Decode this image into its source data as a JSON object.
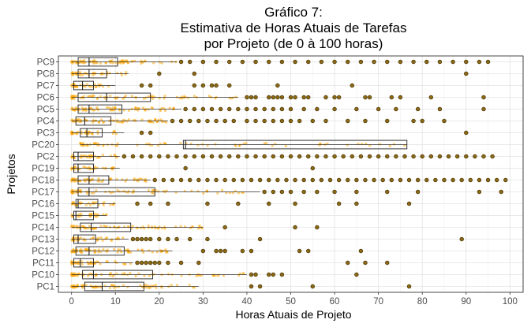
{
  "chart_data": {
    "type": "boxplot",
    "title_lines": [
      "Gráfico 7:",
      "Estimativa de Horas Atuais de Tarefas",
      "por Projeto (de 0 à 100 horas)"
    ],
    "xlabel": "Horas Atuais de Projeto",
    "ylabel": "Projetos",
    "xlim": [
      -3,
      103
    ],
    "x_ticks": [
      0,
      10,
      20,
      30,
      40,
      50,
      60,
      70,
      80,
      90,
      100
    ],
    "grid": true,
    "point_color": "#FFA500",
    "outlier_color": "#8B6914",
    "categories": [
      "PC9",
      "PC8",
      "PC7",
      "PC6",
      "PC5",
      "PC4",
      "PC3",
      "PC20",
      "PC2",
      "PC19",
      "PC18",
      "PC17",
      "PC16",
      "PC15",
      "PC14",
      "PC13",
      "PC12",
      "PC11",
      "PC10",
      "PC1"
    ],
    "boxes": [
      {
        "name": "PC9",
        "whisker_low": 0,
        "q1": 1.5,
        "median": 4,
        "q3": 10.5,
        "whisker_high": 24,
        "outliers": [
          25,
          27,
          30,
          33,
          36,
          39,
          42,
          45,
          48,
          51,
          54,
          57,
          60,
          63,
          66,
          69,
          72,
          75,
          78,
          81,
          84,
          87,
          90,
          93,
          95
        ]
      },
      {
        "name": "PC8",
        "whisker_low": 0,
        "q1": 1.5,
        "median": 4,
        "q3": 8,
        "whisker_high": 13,
        "outliers": [
          20,
          28,
          90
        ]
      },
      {
        "name": "PC7",
        "whisker_low": 0,
        "q1": 0.5,
        "median": 2.5,
        "q3": 5,
        "whisker_high": 10,
        "outliers": [
          16,
          18,
          28,
          30,
          32,
          33,
          36,
          47,
          64
        ]
      },
      {
        "name": "PC6",
        "whisker_low": 0,
        "q1": 1.5,
        "median": 8,
        "q3": 18,
        "whisker_high": 38,
        "outliers": [
          40,
          41,
          42,
          45,
          46,
          47,
          48,
          50,
          51,
          53,
          54,
          58,
          60,
          61,
          67,
          68,
          73,
          75,
          82,
          94
        ]
      },
      {
        "name": "PC5",
        "whisker_low": 0,
        "q1": 1.5,
        "median": 4,
        "q3": 11.5,
        "whisker_high": 25,
        "outliers": [
          26,
          28,
          30,
          32,
          34,
          36,
          38,
          40,
          42,
          44,
          46,
          48,
          50,
          53,
          56,
          60,
          65,
          70,
          74,
          79,
          84,
          94
        ]
      },
      {
        "name": "PC4",
        "whisker_low": 0,
        "q1": 1,
        "median": 3,
        "q3": 9,
        "whisker_high": 22,
        "outliers": [
          23,
          25,
          27,
          29,
          31,
          33,
          35,
          37,
          40,
          42,
          44,
          46,
          48,
          50,
          52,
          55,
          58,
          63,
          67,
          72,
          78,
          80,
          85
        ]
      },
      {
        "name": "PC3",
        "whisker_low": 0,
        "q1": 2,
        "median": 3.5,
        "q3": 7,
        "whisker_high": 12,
        "outliers": [
          16,
          18,
          90
        ]
      },
      {
        "name": "PC20",
        "whisker_low": 2,
        "q1": 25.5,
        "median": 26,
        "q3": 76.5,
        "whisker_high": 76.5,
        "outliers": []
      },
      {
        "name": "PC2",
        "whisker_low": 0,
        "q1": 0.5,
        "median": 1.5,
        "q3": 5,
        "whisker_high": 11,
        "outliers": [
          12,
          14,
          16,
          18,
          20,
          22,
          24,
          26,
          28,
          30,
          32,
          34,
          36,
          38,
          40,
          42,
          44,
          46,
          48,
          50,
          52,
          54,
          56,
          58,
          60,
          62,
          64,
          66,
          68,
          70,
          72,
          74,
          76,
          78,
          80,
          82,
          84,
          86,
          88,
          90,
          92,
          94,
          96
        ]
      },
      {
        "name": "PC19",
        "whisker_low": 0,
        "q1": 0.5,
        "median": 1.5,
        "q3": 5,
        "whisker_high": 11,
        "outliers": [
          26,
          55
        ]
      },
      {
        "name": "PC18",
        "whisker_low": 0,
        "q1": 1.5,
        "median": 4,
        "q3": 8.5,
        "whisker_high": 18,
        "outliers": [
          19,
          21,
          23,
          25,
          27,
          29,
          31,
          33,
          35,
          37,
          39,
          41,
          43,
          45,
          47,
          49,
          51,
          53,
          55,
          57,
          59,
          61,
          63,
          65,
          67,
          69,
          71,
          73,
          75,
          77,
          79,
          81,
          83,
          85,
          87,
          89,
          91,
          93,
          95,
          97,
          99
        ]
      },
      {
        "name": "PC17",
        "whisker_low": 0,
        "q1": 1.5,
        "median": 4,
        "q3": 19,
        "whisker_high": 43,
        "outliers": [
          44,
          46,
          48,
          50,
          53,
          56,
          60,
          65,
          72,
          79,
          93,
          98
        ]
      },
      {
        "name": "PC16",
        "whisker_low": 0,
        "q1": 1,
        "median": 1.5,
        "q3": 6,
        "whisker_high": 10,
        "outliers": [
          15,
          18,
          22,
          31,
          38,
          45,
          51,
          61,
          65,
          77
        ]
      },
      {
        "name": "PC15",
        "whisker_low": 0,
        "q1": 0.5,
        "median": 1,
        "q3": 5,
        "whisker_high": 8,
        "outliers": []
      },
      {
        "name": "PC14",
        "whisker_low": 0,
        "q1": 2,
        "median": 4.5,
        "q3": 13.5,
        "whisker_high": 30,
        "outliers": [
          35,
          51,
          56
        ]
      },
      {
        "name": "PC13",
        "whisker_low": 0,
        "q1": 0.5,
        "median": 1.5,
        "q3": 5.5,
        "whisker_high": 13,
        "outliers": [
          14,
          15,
          16,
          17,
          18,
          20,
          22,
          24,
          27,
          31,
          43,
          89
        ]
      },
      {
        "name": "PC12",
        "whisker_low": 0,
        "q1": 1,
        "median": 4,
        "q3": 12,
        "whisker_high": 23,
        "outliers": [
          30,
          33,
          34,
          35,
          39,
          41,
          52,
          54,
          66
        ]
      },
      {
        "name": "PC11",
        "whisker_low": 0,
        "q1": 0.5,
        "median": 2,
        "q3": 5,
        "whisker_high": 14,
        "outliers": [
          15,
          16,
          17,
          18,
          19,
          20,
          22,
          25,
          29,
          63,
          67,
          72
        ]
      },
      {
        "name": "PC10",
        "whisker_low": 0,
        "q1": 2.5,
        "median": 5,
        "q3": 18.5,
        "whisker_high": 40,
        "outliers": [
          41,
          42,
          45,
          46,
          48,
          65
        ]
      },
      {
        "name": "PC1",
        "whisker_low": 0,
        "q1": 3,
        "median": 7,
        "q3": 16.5,
        "whisker_high": 29,
        "outliers": [
          41,
          43,
          55,
          77
        ]
      }
    ]
  }
}
